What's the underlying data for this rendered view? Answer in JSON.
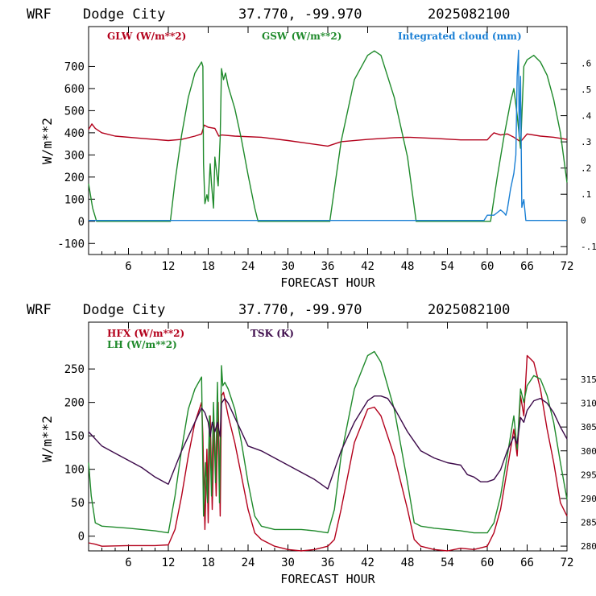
{
  "colors": {
    "red": "#b3001b",
    "green": "#1f8a2b",
    "blue": "#1a7fd4",
    "purple": "#3c0a4a",
    "frame": "#000000"
  },
  "panels": [
    {
      "header": {
        "model": "WRF",
        "station": "Dodge City",
        "coords": "37.770, -99.970",
        "init": "2025082100"
      },
      "left_axis_label": "W/m**2",
      "x_axis_label": "FORECAST HOUR",
      "legend": {
        "glw": "GLW (W/m**2)",
        "gsw": "GSW (W/m**2)",
        "cloud": "Integrated cloud (mm)"
      }
    },
    {
      "header": {
        "model": "WRF",
        "station": "Dodge City",
        "coords": "37.770, -99.970",
        "init": "2025082100"
      },
      "left_axis_label": "W/m**2",
      "x_axis_label": "FORECAST HOUR",
      "legend": {
        "hfx": "HFX (W/m**2)",
        "lh": "LH (W/m**2)",
        "tsk": "TSK (K)"
      }
    }
  ],
  "chart_data": [
    {
      "type": "line",
      "title": "WRF Dodge City 37.770, -99.970 2025082100",
      "xlabel": "FORECAST HOUR",
      "ylabel": "W/m**2",
      "xlim": [
        0,
        72
      ],
      "ylim": [
        -150,
        880
      ],
      "y2lim": [
        -0.13,
        0.74
      ],
      "xticks": [
        6,
        12,
        18,
        24,
        30,
        36,
        42,
        48,
        54,
        60,
        66,
        72
      ],
      "yticks": [
        -100,
        0,
        100,
        200,
        300,
        400,
        500,
        600,
        700
      ],
      "ytick_labels": [
        "-100",
        "0",
        "100",
        "200",
        "300",
        "400",
        "500",
        "600",
        "700"
      ],
      "y2ticks": [
        -0.1,
        0,
        0.1,
        0.2,
        0.3,
        0.4,
        0.5,
        0.6
      ],
      "y2tick_labels": [
        "-.1",
        "0",
        ".1",
        ".2",
        ".3",
        ".4",
        ".5",
        ".6"
      ],
      "series": [
        {
          "name": "GLW (W/m**2)",
          "axis": "left",
          "color": "red",
          "x": [
            0,
            0.5,
            1,
            2,
            4,
            8,
            12,
            14,
            16,
            17,
            17.4,
            18,
            19,
            19.6,
            20,
            22,
            26,
            30,
            36,
            38,
            42,
            46,
            48,
            52,
            56,
            60,
            60.5,
            61,
            62,
            63,
            64,
            65,
            66,
            68,
            70,
            72
          ],
          "y": [
            415,
            440,
            420,
            400,
            385,
            375,
            365,
            370,
            385,
            395,
            435,
            425,
            420,
            385,
            390,
            385,
            380,
            365,
            340,
            360,
            370,
            378,
            380,
            375,
            368,
            368,
            385,
            400,
            390,
            395,
            380,
            360,
            395,
            385,
            380,
            370
          ]
        },
        {
          "name": "GSW (W/m**2)",
          "axis": "left",
          "color": "green",
          "x": [
            0,
            0.6,
            1.2,
            12.3,
            13,
            14,
            15,
            16,
            17,
            17.2,
            17.3,
            17.5,
            17.8,
            18,
            18.3,
            18.5,
            18.8,
            19,
            19.5,
            19.8,
            20,
            20.3,
            20.6,
            21,
            22,
            23,
            24,
            25,
            25.5,
            36.3,
            38,
            40,
            42,
            43,
            44,
            46,
            48,
            49.3,
            60.5,
            61.5,
            62.5,
            63.5,
            64,
            64.5,
            65,
            65.5,
            66,
            67,
            68,
            69,
            70,
            71,
            72
          ],
          "y": [
            170,
            60,
            0,
            0,
            180,
            390,
            560,
            670,
            720,
            700,
            260,
            80,
            120,
            90,
            260,
            170,
            60,
            290,
            160,
            380,
            690,
            640,
            670,
            610,
            510,
            370,
            210,
            60,
            0,
            0,
            360,
            640,
            750,
            770,
            750,
            560,
            290,
            0,
            0,
            200,
            380,
            540,
            600,
            480,
            330,
            700,
            730,
            750,
            720,
            660,
            550,
            400,
            175
          ]
        },
        {
          "name": "Integrated cloud (mm)",
          "axis": "right",
          "color": "blue",
          "x": [
            0,
            59.5,
            60,
            61,
            61.5,
            62,
            62.5,
            62.8,
            63,
            63.5,
            64,
            64.3,
            64.5,
            64.7,
            64.8,
            65,
            65.2,
            65.5,
            65.8,
            66,
            72
          ],
          "y": [
            0,
            0,
            0.02,
            0.02,
            0.03,
            0.04,
            0.03,
            0.02,
            0.04,
            0.12,
            0.18,
            0.25,
            0.55,
            0.65,
            0.32,
            0.55,
            0.05,
            0.08,
            0,
            0,
            0
          ]
        }
      ]
    },
    {
      "type": "line",
      "title": "WRF Dodge City 37.770, -99.970 2025082100",
      "xlabel": "FORECAST HOUR",
      "ylabel": "W/m**2",
      "xlim": [
        0,
        72
      ],
      "ylim": [
        -22,
        320
      ],
      "y2lim": [
        279,
        327
      ],
      "xticks": [
        6,
        12,
        18,
        24,
        30,
        36,
        42,
        48,
        54,
        60,
        66,
        72
      ],
      "yticks": [
        0,
        50,
        100,
        150,
        200,
        250
      ],
      "ytick_labels": [
        "0",
        "50",
        "100",
        "150",
        "200",
        "250"
      ],
      "y2ticks": [
        280,
        285,
        290,
        295,
        300,
        305,
        310,
        315
      ],
      "y2tick_labels": [
        "280",
        "285",
        "290",
        "295",
        "300",
        "305",
        "310",
        "315"
      ],
      "series": [
        {
          "name": "HFX (W/m**2)",
          "axis": "left",
          "color": "red",
          "x": [
            0,
            1,
            2,
            6,
            10,
            12,
            13,
            14,
            15,
            16,
            17,
            17.2,
            17.5,
            17.8,
            18,
            18.3,
            18.6,
            18.9,
            19.2,
            19.5,
            19.8,
            20,
            20.3,
            20.6,
            21,
            22,
            23,
            24,
            25,
            26,
            28,
            30,
            32,
            34,
            36,
            37,
            38,
            40,
            42,
            43,
            44,
            46,
            48,
            49,
            50,
            52,
            54,
            56,
            58,
            60,
            61,
            62,
            63,
            64,
            64.5,
            65,
            65.5,
            66,
            67,
            68,
            69,
            70,
            71,
            72
          ],
          "y": [
            -10,
            -12,
            -15,
            -14,
            -14,
            -13,
            10,
            60,
            120,
            170,
            200,
            150,
            10,
            130,
            20,
            180,
            40,
            170,
            60,
            200,
            30,
            210,
            215,
            200,
            180,
            140,
            90,
            40,
            5,
            -5,
            -15,
            -20,
            -22,
            -20,
            -15,
            -5,
            40,
            140,
            190,
            193,
            180,
            120,
            40,
            -5,
            -15,
            -20,
            -22,
            -18,
            -20,
            -15,
            5,
            40,
            100,
            160,
            120,
            210,
            180,
            270,
            260,
            220,
            160,
            110,
            50,
            30
          ]
        },
        {
          "name": "LH (W/m**2)",
          "axis": "left",
          "color": "green",
          "x": [
            0,
            0.4,
            1,
            2,
            6,
            10,
            12,
            13,
            14,
            15,
            16,
            17,
            17.3,
            17.6,
            17.9,
            18.2,
            18.5,
            18.8,
            19.1,
            19.4,
            19.7,
            20,
            20.2,
            20.5,
            21,
            22,
            23,
            24,
            25,
            26,
            28,
            30,
            32,
            34,
            36,
            37,
            38,
            40,
            42,
            43,
            44,
            46,
            48,
            49,
            50,
            52,
            54,
            56,
            58,
            60,
            61,
            62,
            63,
            64,
            64.5,
            65,
            65.5,
            66,
            67,
            68,
            69,
            70,
            71,
            72
          ],
          "y": [
            110,
            60,
            20,
            15,
            12,
            8,
            5,
            60,
            130,
            190,
            220,
            238,
            30,
            110,
            50,
            180,
            60,
            200,
            80,
            230,
            50,
            255,
            225,
            230,
            220,
            190,
            140,
            80,
            30,
            15,
            10,
            10,
            10,
            8,
            5,
            40,
            120,
            220,
            270,
            276,
            260,
            190,
            80,
            20,
            15,
            12,
            10,
            8,
            5,
            5,
            20,
            60,
            120,
            180,
            130,
            220,
            200,
            225,
            240,
            235,
            210,
            170,
            110,
            55
          ]
        },
        {
          "name": "TSK (K)",
          "axis": "right",
          "color": "purple",
          "x": [
            0,
            2,
            4,
            6,
            8,
            10,
            12,
            14,
            16,
            17,
            17.5,
            18,
            18.3,
            18.6,
            19,
            19.4,
            19.8,
            20,
            20.5,
            21,
            22,
            23,
            24,
            26,
            28,
            30,
            32,
            34,
            36,
            38,
            40,
            42,
            43,
            44,
            45,
            46,
            48,
            50,
            52,
            54,
            56,
            57,
            58,
            59,
            60,
            61,
            62,
            63,
            64,
            64.5,
            65,
            65.5,
            66,
            67,
            68,
            69,
            70,
            71,
            72
          ],
          "y": [
            304,
            301,
            299.5,
            298,
            296.5,
            294.5,
            293,
            300,
            306,
            309,
            308,
            306,
            303,
            306,
            304,
            306,
            303,
            310,
            311,
            310,
            307,
            304,
            301,
            300,
            298.5,
            297,
            295.5,
            294,
            292,
            300,
            306,
            310.5,
            311.5,
            311.5,
            311,
            309,
            304,
            300,
            298.5,
            297.5,
            297,
            295,
            294.5,
            293.5,
            293.5,
            294,
            296,
            300,
            303,
            301.5,
            307,
            306,
            308.5,
            310.5,
            311,
            310,
            308,
            305,
            302.5
          ]
        }
      ]
    }
  ]
}
